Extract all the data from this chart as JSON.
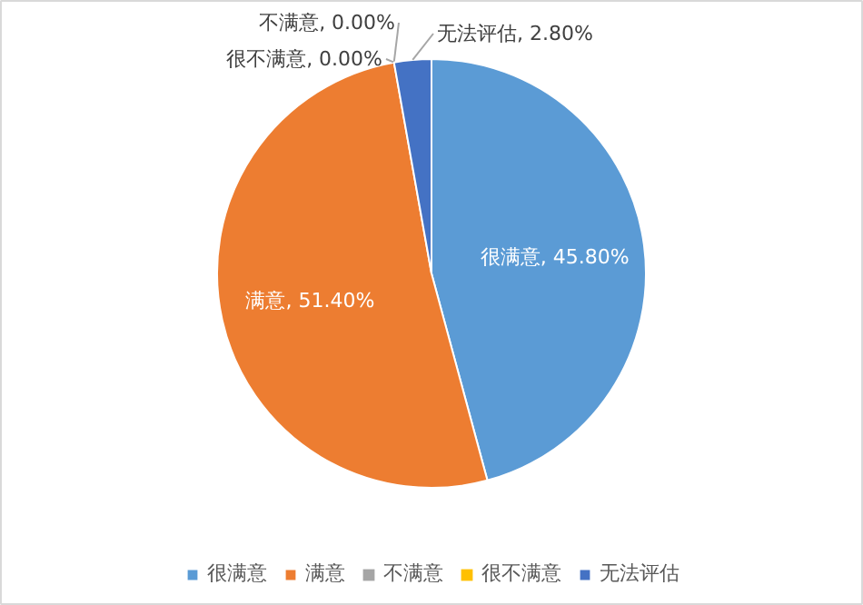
{
  "chart_data": {
    "type": "pie",
    "categories": [
      "很满意",
      "满意",
      "不满意",
      "很不满意",
      "无法评估"
    ],
    "values": [
      45.8,
      51.4,
      0.0,
      0.0,
      2.8
    ],
    "value_labels": [
      "很满意, 45.80%",
      "满意, 51.40%",
      "不满意, 0.00%",
      "很不满意, 0.00%",
      "无法评估, 2.80%"
    ],
    "colors": [
      "#5b9bd5",
      "#ed7d31",
      "#a5a5a5",
      "#ffc000",
      "#4472c4"
    ],
    "legend": "bottom"
  }
}
